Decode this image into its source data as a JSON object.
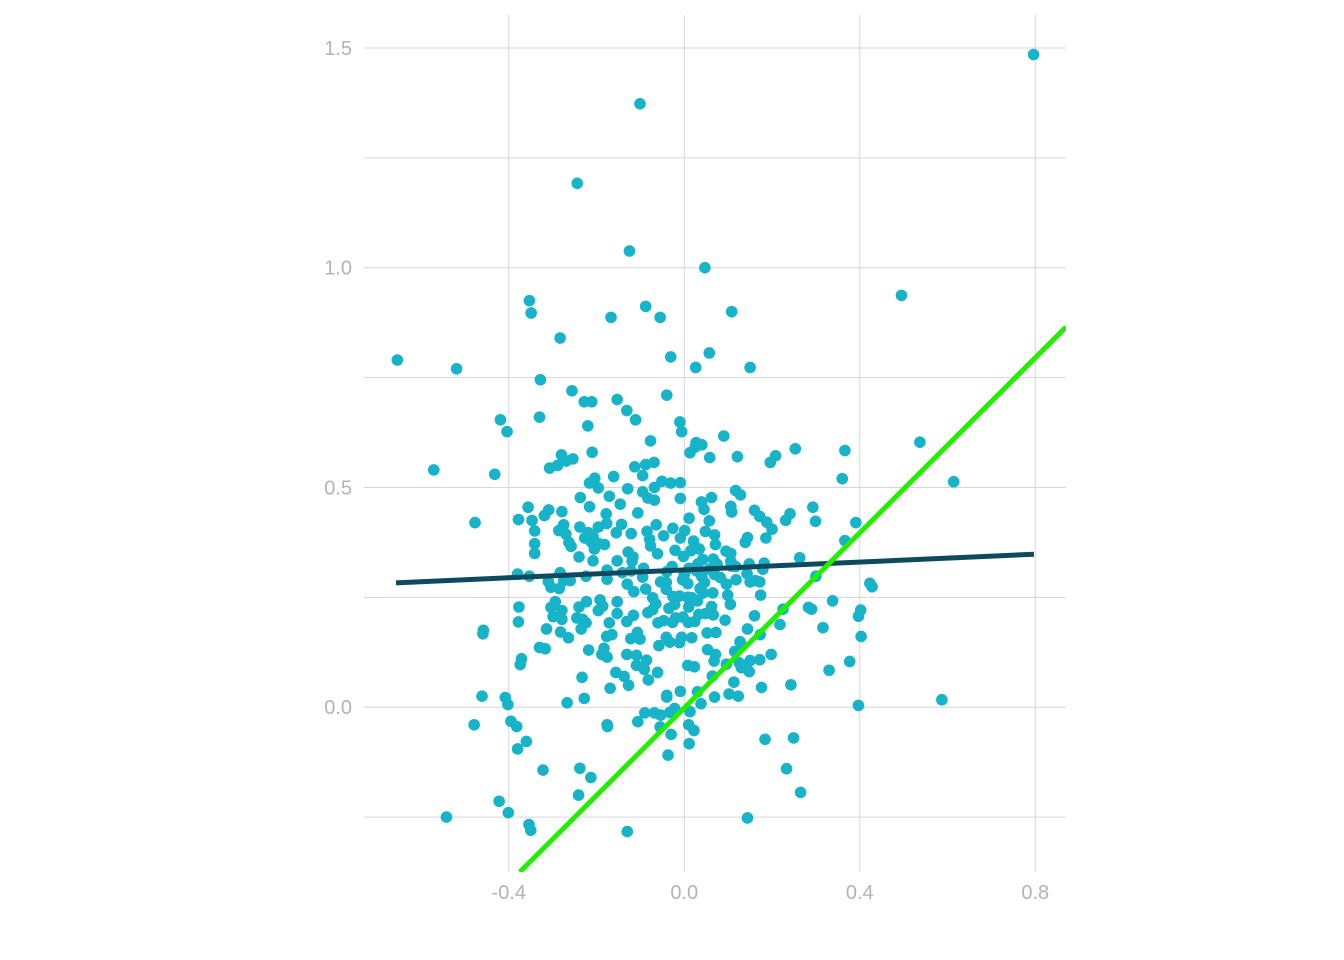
{
  "chart_data": {
    "type": "scatter",
    "title": "",
    "xlabel": "",
    "ylabel": "",
    "xlim": [
      -0.73,
      0.87
    ],
    "ylim": [
      -0.375,
      1.575
    ],
    "grid": true,
    "x_ticks": [
      {
        "value": -0.4,
        "label": "-0.4"
      },
      {
        "value": 0.0,
        "label": "0.0"
      },
      {
        "value": 0.4,
        "label": "0.4"
      },
      {
        "value": 0.8,
        "label": "0.8"
      }
    ],
    "y_ticks": [
      {
        "value": 0.0,
        "label": "0.0"
      },
      {
        "value": 0.5,
        "label": "0.5"
      },
      {
        "value": 1.0,
        "label": "1.0"
      },
      {
        "value": 1.5,
        "label": "1.5"
      }
    ],
    "y_minor_grid": [
      -0.25,
      0.25,
      0.75,
      1.25
    ],
    "colors": {
      "points": "#17b3c8",
      "fit_line": "#0d4a5e",
      "reference_line": "#22ee00"
    },
    "points": [
      [
        0.796,
        1.485
      ],
      [
        -0.101,
        1.373
      ],
      [
        -0.244,
        1.192
      ],
      [
        -0.125,
        1.038
      ],
      [
        0.047,
        1.0
      ],
      [
        0.495,
        0.937
      ],
      [
        -0.353,
        0.925
      ],
      [
        -0.088,
        0.912
      ],
      [
        0.108,
        0.9
      ],
      [
        -0.349,
        0.897
      ],
      [
        -0.167,
        0.887
      ],
      [
        -0.055,
        0.887
      ],
      [
        -0.283,
        0.84
      ],
      [
        0.057,
        0.806
      ],
      [
        -0.031,
        0.797
      ],
      [
        -0.654,
        0.79
      ],
      [
        0.026,
        0.773
      ],
      [
        0.15,
        0.773
      ],
      [
        -0.519,
        0.77
      ],
      [
        -0.328,
        0.745
      ],
      [
        -0.256,
        0.72
      ],
      [
        -0.04,
        0.71
      ],
      [
        -0.153,
        0.7
      ],
      [
        -0.228,
        0.695
      ],
      [
        -0.211,
        0.695
      ],
      [
        -0.131,
        0.675
      ],
      [
        -0.33,
        0.66
      ],
      [
        -0.419,
        0.654
      ],
      [
        -0.111,
        0.654
      ],
      [
        -0.01,
        0.649
      ],
      [
        -0.22,
        0.64
      ],
      [
        -0.404,
        0.627
      ],
      [
        -0.006,
        0.627
      ],
      [
        0.09,
        0.617
      ],
      [
        -0.077,
        0.606
      ],
      [
        0.027,
        0.602
      ],
      [
        0.537,
        0.603
      ],
      [
        0.04,
        0.597
      ],
      [
        0.025,
        0.592
      ],
      [
        0.253,
        0.588
      ],
      [
        0.366,
        0.584
      ],
      [
        -0.21,
        0.58
      ],
      [
        0.013,
        0.579
      ],
      [
        -0.28,
        0.574
      ],
      [
        0.208,
        0.572
      ],
      [
        0.058,
        0.568
      ],
      [
        0.121,
        0.57
      ],
      [
        -0.254,
        0.565
      ],
      [
        -0.269,
        0.56
      ],
      [
        -0.069,
        0.557
      ],
      [
        0.196,
        0.557
      ],
      [
        -0.088,
        0.552
      ],
      [
        -0.289,
        0.55
      ],
      [
        -0.307,
        0.544
      ],
      [
        -0.113,
        0.547
      ],
      [
        -0.571,
        0.54
      ],
      [
        -0.432,
        0.53
      ],
      [
        -0.095,
        0.527
      ],
      [
        -0.204,
        0.521
      ],
      [
        -0.051,
        0.514
      ],
      [
        0.36,
        0.52
      ],
      [
        -0.161,
        0.525
      ],
      [
        0.614,
        0.513
      ],
      [
        -0.031,
        0.51
      ],
      [
        -0.009,
        0.511
      ],
      [
        -0.216,
        0.51
      ],
      [
        -0.196,
        0.499
      ],
      [
        -0.129,
        0.497
      ],
      [
        -0.095,
        0.49
      ],
      [
        -0.068,
        0.5
      ],
      [
        0.117,
        0.493
      ],
      [
        0.128,
        0.483
      ],
      [
        -0.171,
        0.48
      ],
      [
        -0.237,
        0.477
      ],
      [
        -0.083,
        0.476
      ],
      [
        -0.009,
        0.475
      ],
      [
        0.062,
        0.477
      ],
      [
        -0.068,
        0.471
      ],
      [
        0.039,
        0.467
      ],
      [
        -0.146,
        0.462
      ],
      [
        0.106,
        0.457
      ],
      [
        0.293,
        0.455
      ],
      [
        -0.356,
        0.455
      ],
      [
        -0.216,
        0.456
      ],
      [
        -0.309,
        0.449
      ],
      [
        0.045,
        0.45
      ],
      [
        0.16,
        0.448
      ],
      [
        -0.279,
        0.445
      ],
      [
        0.108,
        0.444
      ],
      [
        -0.106,
        0.442
      ],
      [
        -0.319,
        0.436
      ],
      [
        0.241,
        0.44
      ],
      [
        -0.178,
        0.44
      ],
      [
        0.011,
        0.43
      ],
      [
        0.172,
        0.434
      ],
      [
        -0.378,
        0.427
      ],
      [
        -0.347,
        0.425
      ],
      [
        0.299,
        0.423
      ],
      [
        0.057,
        0.424
      ],
      [
        0.231,
        0.425
      ],
      [
        -0.477,
        0.42
      ],
      [
        0.391,
        0.42
      ],
      [
        0.188,
        0.421
      ],
      [
        -0.177,
        0.418
      ],
      [
        -0.275,
        0.415
      ],
      [
        -0.143,
        0.416
      ],
      [
        -0.064,
        0.415
      ],
      [
        -0.238,
        0.41
      ],
      [
        -0.026,
        0.407
      ],
      [
        0.2,
        0.405
      ],
      [
        -0.196,
        0.41
      ],
      [
        -0.286,
        0.402
      ],
      [
        -0.341,
        0.401
      ],
      [
        -0.085,
        0.4
      ],
      [
        0.001,
        0.402
      ],
      [
        0.048,
        0.4
      ],
      [
        -0.155,
        0.397
      ],
      [
        -0.219,
        0.397
      ],
      [
        -0.121,
        0.395
      ],
      [
        -0.27,
        0.394
      ],
      [
        0.069,
        0.392
      ],
      [
        -0.047,
        0.39
      ],
      [
        -0.208,
        0.389
      ],
      [
        -0.227,
        0.385
      ],
      [
        0.144,
        0.386
      ],
      [
        0.186,
        0.385
      ],
      [
        -0.009,
        0.385
      ],
      [
        -0.079,
        0.382
      ],
      [
        0.021,
        0.378
      ],
      [
        0.366,
        0.379
      ],
      [
        -0.263,
        0.375
      ],
      [
        -0.212,
        0.376
      ],
      [
        -0.195,
        0.372
      ],
      [
        -0.341,
        0.372
      ],
      [
        0.139,
        0.375
      ],
      [
        0.071,
        0.37
      ],
      [
        -0.182,
        0.37
      ],
      [
        -0.258,
        0.366
      ],
      [
        -0.077,
        0.367
      ],
      [
        0.034,
        0.36
      ],
      [
        -0.205,
        0.36
      ],
      [
        -0.021,
        0.357
      ],
      [
        0.015,
        0.356
      ],
      [
        0.095,
        0.355
      ],
      [
        -0.128,
        0.353
      ],
      [
        -0.061,
        0.349
      ],
      [
        -0.341,
        0.35
      ],
      [
        0.106,
        0.35
      ],
      [
        -0.002,
        0.343
      ],
      [
        -0.117,
        0.342
      ],
      [
        -0.24,
        0.342
      ],
      [
        0.042,
        0.336
      ],
      [
        0.263,
        0.34
      ],
      [
        0.066,
        0.337
      ],
      [
        -0.119,
        0.332
      ],
      [
        -0.208,
        0.333
      ],
      [
        -0.153,
        0.333
      ],
      [
        0.106,
        0.332
      ],
      [
        0.031,
        0.326
      ],
      [
        0.075,
        0.325
      ],
      [
        0.182,
        0.328
      ],
      [
        0.148,
        0.326
      ],
      [
        0.179,
        0.314
      ],
      [
        0.107,
        0.321
      ],
      [
        0.117,
        0.32
      ],
      [
        -0.028,
        0.32
      ],
      [
        -0.093,
        0.316
      ],
      [
        0.011,
        0.316
      ],
      [
        0.057,
        0.314
      ],
      [
        -0.176,
        0.312
      ],
      [
        -0.121,
        0.31
      ],
      [
        -0.04,
        0.308
      ],
      [
        -0.283,
        0.306
      ],
      [
        -0.141,
        0.306
      ],
      [
        0.143,
        0.304
      ],
      [
        -0.38,
        0.303
      ],
      [
        0.069,
        0.302
      ],
      [
        0.0,
        0.302
      ],
      [
        0.028,
        0.31
      ],
      [
        0.3,
        0.298
      ],
      [
        -0.224,
        0.298
      ],
      [
        -0.353,
        0.298
      ],
      [
        0.04,
        0.297
      ],
      [
        0.082,
        0.295
      ],
      [
        -0.095,
        0.296
      ],
      [
        -0.176,
        0.291
      ],
      [
        0.118,
        0.29
      ],
      [
        0.162,
        0.288
      ],
      [
        -0.31,
        0.286
      ],
      [
        -0.275,
        0.288
      ],
      [
        -0.054,
        0.285
      ],
      [
        -0.041,
        0.284
      ],
      [
        -0.26,
        0.288
      ],
      [
        -0.004,
        0.29
      ],
      [
        0.172,
        0.285
      ],
      [
        0.15,
        0.285
      ],
      [
        0.046,
        0.284
      ],
      [
        0.423,
        0.282
      ],
      [
        0.096,
        0.28
      ],
      [
        -0.13,
        0.28
      ],
      [
        0.008,
        0.281
      ],
      [
        0.428,
        0.274
      ],
      [
        -0.304,
        0.273
      ],
      [
        -0.088,
        0.269
      ],
      [
        -0.285,
        0.27
      ],
      [
        -0.041,
        0.268
      ],
      [
        0.036,
        0.27
      ],
      [
        -0.115,
        0.263
      ],
      [
        0.043,
        0.26
      ],
      [
        0.065,
        0.26
      ],
      [
        0.099,
        0.255
      ],
      [
        -0.026,
        0.252
      ],
      [
        -0.011,
        0.253
      ],
      [
        -0.072,
        0.249
      ],
      [
        0.008,
        0.25
      ],
      [
        0.018,
        0.249
      ],
      [
        0.174,
        0.255
      ],
      [
        -0.192,
        0.244
      ],
      [
        -0.294,
        0.24
      ],
      [
        -0.223,
        0.24
      ],
      [
        0.03,
        0.242
      ],
      [
        0.338,
        0.242
      ],
      [
        -0.153,
        0.24
      ],
      [
        -0.065,
        0.235
      ],
      [
        -0.022,
        0.234
      ],
      [
        0.105,
        0.234
      ],
      [
        -0.377,
        0.228
      ],
      [
        -0.24,
        0.228
      ],
      [
        -0.186,
        0.23
      ],
      [
        0.062,
        0.229
      ],
      [
        0.01,
        0.228
      ],
      [
        0.283,
        0.227
      ],
      [
        -0.304,
        0.227
      ],
      [
        -0.035,
        0.225
      ],
      [
        -0.072,
        0.222
      ],
      [
        -0.279,
        0.22
      ],
      [
        0.402,
        0.221
      ],
      [
        0.225,
        0.223
      ],
      [
        0.29,
        0.223
      ],
      [
        -0.083,
        0.215
      ],
      [
        -0.196,
        0.22
      ],
      [
        -0.153,
        0.213
      ],
      [
        0.049,
        0.213
      ],
      [
        0.16,
        0.208
      ],
      [
        0.033,
        0.211
      ],
      [
        -0.116,
        0.209
      ],
      [
        0.066,
        0.21
      ],
      [
        -0.003,
        0.205
      ],
      [
        -0.299,
        0.206
      ],
      [
        0.397,
        0.207
      ],
      [
        -0.02,
        0.203
      ],
      [
        -0.279,
        0.2
      ],
      [
        -0.245,
        0.203
      ],
      [
        -0.232,
        0.2
      ],
      [
        -0.378,
        0.194
      ],
      [
        0.093,
        0.198
      ],
      [
        -0.06,
        0.192
      ],
      [
        -0.047,
        0.197
      ],
      [
        -0.171,
        0.192
      ],
      [
        -0.027,
        0.193
      ],
      [
        0.009,
        0.193
      ],
      [
        0.024,
        0.195
      ],
      [
        -0.131,
        0.195
      ],
      [
        -0.224,
        0.192
      ],
      [
        0.218,
        0.188
      ],
      [
        0.316,
        0.181
      ],
      [
        0.144,
        0.178
      ],
      [
        -0.314,
        0.178
      ],
      [
        -0.235,
        0.178
      ],
      [
        -0.282,
        0.171
      ],
      [
        -0.107,
        0.17
      ],
      [
        0.052,
        0.169
      ],
      [
        0.072,
        0.17
      ],
      [
        -0.458,
        0.175
      ],
      [
        0.173,
        0.165
      ],
      [
        -0.459,
        0.167
      ],
      [
        -0.165,
        0.165
      ],
      [
        -0.177,
        0.161
      ],
      [
        -0.264,
        0.158
      ],
      [
        -0.041,
        0.159
      ],
      [
        0.403,
        0.161
      ],
      [
        -0.122,
        0.156
      ],
      [
        0.017,
        0.158
      ],
      [
        -0.006,
        0.159
      ],
      [
        -0.101,
        0.155
      ],
      [
        0.127,
        0.149
      ],
      [
        -0.033,
        0.148
      ],
      [
        -0.011,
        0.147
      ],
      [
        -0.058,
        0.14
      ],
      [
        0.131,
        0.14
      ],
      [
        -0.317,
        0.133
      ],
      [
        -0.33,
        0.136
      ],
      [
        -0.183,
        0.134
      ],
      [
        0.053,
        0.131
      ],
      [
        -0.218,
        0.13
      ],
      [
        0.115,
        0.127
      ],
      [
        -0.188,
        0.12
      ],
      [
        -0.131,
        0.12
      ],
      [
        -0.109,
        0.118
      ],
      [
        0.198,
        0.12
      ],
      [
        -0.371,
        0.11
      ],
      [
        0.071,
        0.12
      ],
      [
        -0.176,
        0.114
      ],
      [
        0.172,
        0.108
      ],
      [
        -0.086,
        0.107
      ],
      [
        0.377,
        0.104
      ],
      [
        0.068,
        0.105
      ],
      [
        -0.374,
        0.097
      ],
      [
        0.125,
        0.101
      ],
      [
        0.15,
        0.106
      ],
      [
        0.096,
        0.098
      ],
      [
        0.008,
        0.095
      ],
      [
        -0.109,
        0.095
      ],
      [
        0.023,
        0.092
      ],
      [
        0.13,
        0.09
      ],
      [
        -0.091,
        0.086
      ],
      [
        0.33,
        0.084
      ],
      [
        0.148,
        0.081
      ],
      [
        -0.061,
        0.079
      ],
      [
        -0.156,
        0.079
      ],
      [
        -0.137,
        0.07
      ],
      [
        0.064,
        0.071
      ],
      [
        -0.233,
        0.068
      ],
      [
        -0.082,
        0.062
      ],
      [
        0.113,
        0.057
      ],
      [
        -0.127,
        0.05
      ],
      [
        0.243,
        0.051
      ],
      [
        0.176,
        0.045
      ],
      [
        -0.169,
        0.043
      ],
      [
        0.03,
        0.035
      ],
      [
        -0.461,
        0.025
      ],
      [
        0.123,
        0.025
      ],
      [
        -0.009,
        0.036
      ],
      [
        -0.04,
        0.027
      ],
      [
        -0.04,
        0.023
      ],
      [
        0.069,
        0.023
      ],
      [
        0.102,
        0.03
      ],
      [
        -0.228,
        0.02
      ],
      [
        -0.408,
        0.022
      ],
      [
        0.587,
        0.017
      ],
      [
        -0.267,
        0.01
      ],
      [
        0.038,
        0.008
      ],
      [
        -0.402,
        0.006
      ],
      [
        0.397,
        0.004
      ],
      [
        -0.022,
        -0.003
      ],
      [
        -0.09,
        -0.013
      ],
      [
        0.013,
        -0.01
      ],
      [
        -0.068,
        -0.013
      ],
      [
        -0.054,
        -0.018
      ],
      [
        -0.033,
        -0.012
      ],
      [
        -0.106,
        -0.033
      ],
      [
        -0.176,
        -0.04
      ],
      [
        -0.395,
        -0.032
      ],
      [
        -0.382,
        -0.044
      ],
      [
        0.01,
        -0.04
      ],
      [
        -0.055,
        -0.045
      ],
      [
        0.022,
        -0.053
      ],
      [
        -0.479,
        -0.04
      ],
      [
        -0.175,
        -0.044
      ],
      [
        -0.03,
        -0.062
      ],
      [
        0.184,
        -0.073
      ],
      [
        -0.36,
        -0.078
      ],
      [
        0.249,
        -0.07
      ],
      [
        0.011,
        -0.083
      ],
      [
        -0.38,
        -0.095
      ],
      [
        -0.037,
        -0.109
      ],
      [
        -0.238,
        -0.139
      ],
      [
        -0.322,
        -0.143
      ],
      [
        0.233,
        -0.14
      ],
      [
        -0.213,
        -0.16
      ],
      [
        0.265,
        -0.194
      ],
      [
        -0.241,
        -0.2
      ],
      [
        -0.422,
        -0.214
      ],
      [
        -0.401,
        -0.24
      ],
      [
        -0.542,
        -0.25
      ],
      [
        0.144,
        -0.252
      ],
      [
        -0.354,
        -0.267
      ],
      [
        -0.35,
        -0.28
      ],
      [
        -0.13,
        -0.283
      ]
    ],
    "lines": [
      {
        "name": "",
        "x": [
          -0.657,
          0.797
        ],
        "y": [
          0.283,
          0.348
        ]
      },
      {
        "name": "",
        "x": [
          -0.375,
          0.87
        ],
        "y": [
          -0.375,
          0.865
        ]
      }
    ]
  }
}
